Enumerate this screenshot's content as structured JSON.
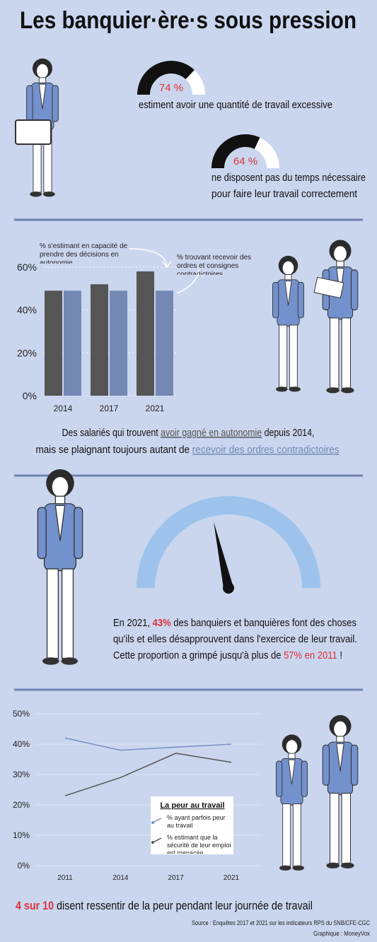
{
  "title": "Les banquier·ère·s sous pression",
  "chart_data": [
    {
      "type": "gauge",
      "value": 74,
      "value_label": "74 %",
      "caption": [
        "estiment avoir une quantité de travail excessive"
      ]
    },
    {
      "type": "gauge",
      "value": 64,
      "value_label": "64 %",
      "caption": [
        "ne disposent pas du temps nécessaire",
        "pour faire leur travail correctement"
      ]
    },
    {
      "type": "bar",
      "categories": [
        "2014",
        "2017",
        "2021"
      ],
      "series": [
        {
          "name": "% s'estimant en capacité de prendre des décisions en autonomie",
          "color": "#555555",
          "values": [
            49,
            52,
            58
          ]
        },
        {
          "name": "% trouvant recevoir des ordres et consignes contradictoires",
          "color": "#7388b3",
          "values": [
            49,
            49,
            49
          ]
        }
      ],
      "ylim": [
        0,
        62
      ],
      "yticks": [
        {
          "value": 0,
          "label": "0%"
        },
        {
          "value": 20,
          "label": "20%"
        },
        {
          "value": 40,
          "label": "40%"
        },
        {
          "value": 60,
          "label": "60%"
        }
      ],
      "grid": true,
      "caption": [
        [
          "Des salariés qui trouvent ",
          "avoir gagné en autonomie",
          " depuis 2014,"
        ],
        [
          "mais se plaignant toujours autant de ",
          "recevoir des ordres contradictoires"
        ]
      ]
    },
    {
      "type": "needle",
      "value": 43,
      "value_label": "43%",
      "color": "#9dc3ec",
      "caption": [
        [
          "En 2021, ",
          " des banquiers et banquières font des choses"
        ],
        [
          "qu'ils et elles désapprouvent dans l'exercice de leur travail."
        ],
        [
          "Cette proportion a grimpé jusqu'à plus de ",
          "57% en 2011",
          " !"
        ]
      ]
    },
    {
      "type": "line",
      "categories": [
        "2011",
        "2014",
        "2017",
        "2021"
      ],
      "legend_title": "La peur au travail",
      "series": [
        {
          "name": "% ayant parfois peur au travail",
          "color": "#7a8fc4",
          "values": [
            42,
            38,
            39,
            40
          ]
        },
        {
          "name": "% estimant que la sécurité de leur emploi est menacée",
          "color": "#555555",
          "values": [
            23,
            29,
            37,
            34
          ]
        }
      ],
      "ylim": [
        0,
        50
      ],
      "yticks": [
        {
          "value": 0,
          "label": "0%"
        },
        {
          "value": 10,
          "label": "10%"
        },
        {
          "value": 20,
          "label": "20%"
        },
        {
          "value": 30,
          "label": "30%"
        },
        {
          "value": 40,
          "label": "40%"
        },
        {
          "value": 50,
          "label": "50%"
        }
      ],
      "grid": true
    }
  ],
  "conclusion": [
    "4 sur 10",
    " disent ressentir de la peur pendant leur journée de travail"
  ],
  "source": "Source : Enquêtes 2017 et 2021 sur les indicateurs RPS du SNB/CFE-CGC",
  "credit": "Graphique : MoneyVox"
}
